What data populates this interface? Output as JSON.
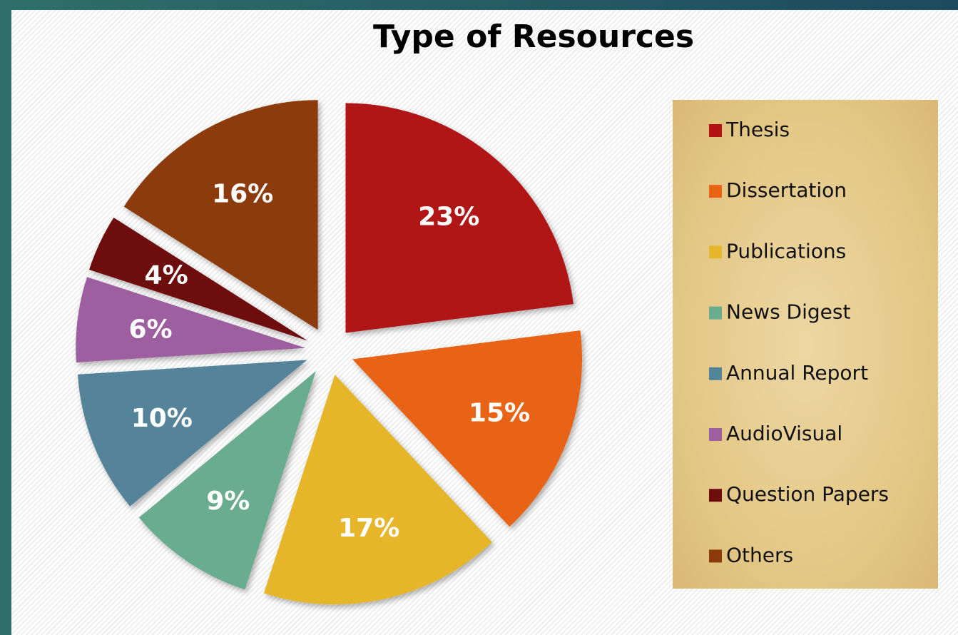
{
  "chart_data": {
    "type": "pie",
    "title": "Type of Resources",
    "categories": [
      "Thesis",
      "Dissertation",
      "Publications",
      "News Digest",
      "Annual Report",
      "AudioVisual",
      "Question Papers",
      "Others"
    ],
    "values": [
      23,
      15,
      17,
      9,
      10,
      6,
      4,
      16
    ],
    "value_labels": [
      "23%",
      "15%",
      "17%",
      "9%",
      "10%",
      "6%",
      "4%",
      "16%"
    ],
    "colors": [
      "#b01513",
      "#e86414",
      "#e5b62c",
      "#6aac90",
      "#54849a",
      "#9e5fa0",
      "#6d0d0c",
      "#8c3a0b"
    ],
    "legend": "right"
  }
}
